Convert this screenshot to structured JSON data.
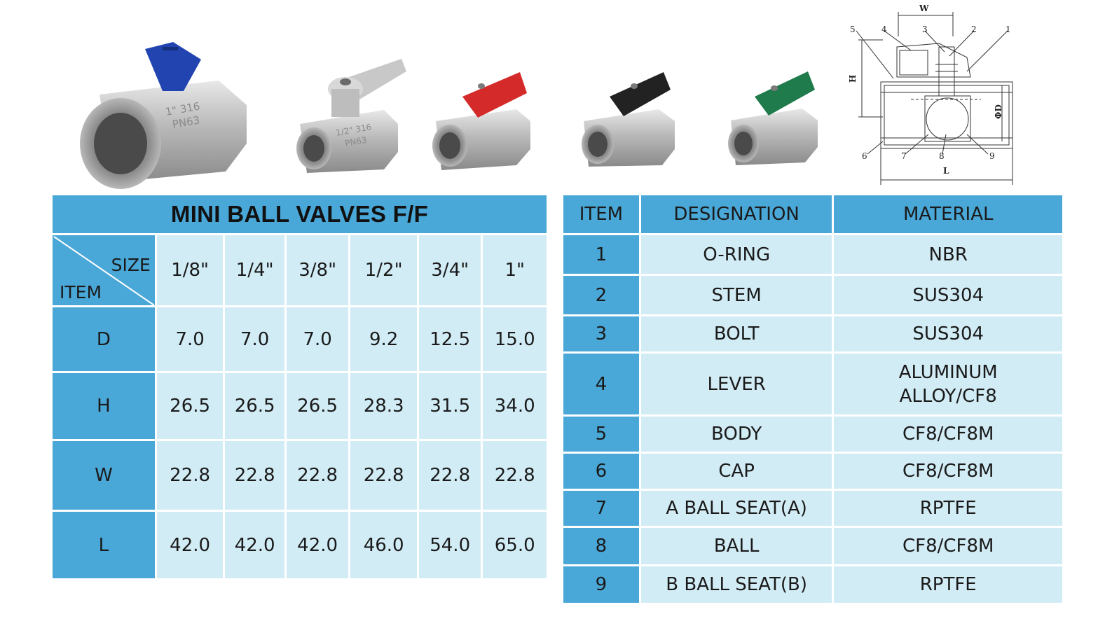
{
  "left_table": {
    "title": "MINI BALL VALVES F/F",
    "corner": {
      "size_label": "SIZE",
      "item_label": "ITEM"
    },
    "sizes": [
      "1/8\"",
      "1/4\"",
      "3/8\"",
      "1/2\"",
      "3/4\"",
      "1\""
    ],
    "rows": [
      {
        "item": "D",
        "values": [
          "7.0",
          "7.0",
          "7.0",
          "9.2",
          "12.5",
          "15.0"
        ]
      },
      {
        "item": "H",
        "values": [
          "26.5",
          "26.5",
          "26.5",
          "28.3",
          "31.5",
          "34.0"
        ]
      },
      {
        "item": "W",
        "values": [
          "22.8",
          "22.8",
          "22.8",
          "22.8",
          "22.8",
          "22.8"
        ]
      },
      {
        "item": "L",
        "values": [
          "42.0",
          "42.0",
          "42.0",
          "46.0",
          "54.0",
          "65.0"
        ]
      }
    ]
  },
  "right_table": {
    "headers": [
      "ITEM",
      "DESIGNATION",
      "MATERIAL"
    ],
    "rows": [
      {
        "item": "1",
        "designation": "O-RING",
        "material": "NBR"
      },
      {
        "item": "2",
        "designation": "STEM",
        "material": "SUS304"
      },
      {
        "item": "3",
        "designation": "BOLT",
        "material": "SUS304"
      },
      {
        "item": "4",
        "designation": "LEVER",
        "material": "ALUMINUM",
        "material2": "ALLOY/CF8"
      },
      {
        "item": "5",
        "designation": "BODY",
        "material": "CF8/CF8M"
      },
      {
        "item": "6",
        "designation": "CAP",
        "material": "CF8/CF8M"
      },
      {
        "item": "7",
        "designation": "A BALL SEAT(A)",
        "material": "RPTFE"
      },
      {
        "item": "8",
        "designation": "BALL",
        "material": "CF8/CF8M"
      },
      {
        "item": "9",
        "designation": "B BALL SEAT(B)",
        "material": "RPTFE"
      }
    ]
  },
  "photo_marks": {
    "big": [
      "1\" 316",
      "PN63"
    ],
    "small": [
      "1/2\" 316",
      "PN63"
    ]
  },
  "handle_colors": {
    "big": "#2244b0",
    "silver": "#c8c8c8",
    "red": "#d42a2a",
    "black": "#222222",
    "green": "#1f7a4c"
  },
  "drawing": {
    "callouts": [
      "5",
      "4",
      "3",
      "2",
      "1",
      "6",
      "7",
      "8",
      "9"
    ],
    "dims": {
      "w": "W",
      "h": "H",
      "d": "ΦD",
      "l": "L"
    }
  }
}
